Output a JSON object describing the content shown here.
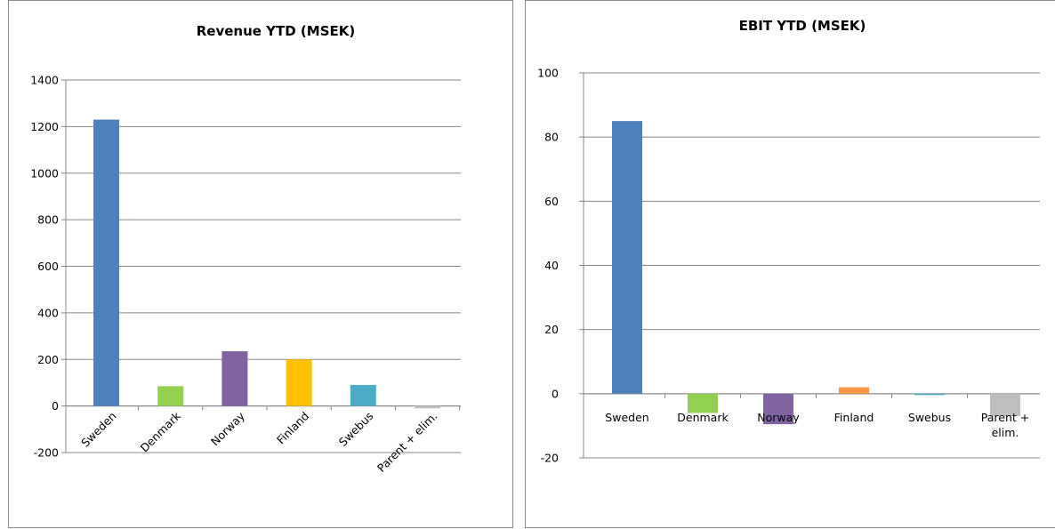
{
  "chart_data": [
    {
      "type": "bar",
      "title": "Revenue YTD (MSEK)",
      "categories": [
        "Sweden",
        "Denmark",
        "Norway",
        "Finland",
        "Swebus",
        "Parent + elim."
      ],
      "values": [
        1230,
        85,
        235,
        200,
        90,
        -10
      ],
      "colors": [
        "#4f81bd",
        "#92d050",
        "#8064a2",
        "#ffc000",
        "#4bacc6",
        "#bfbfbf"
      ],
      "ylim": [
        -200,
        1400
      ],
      "yticks": [
        -200,
        0,
        200,
        400,
        600,
        800,
        1000,
        1200,
        1400
      ],
      "label_style": "rotated",
      "grid": true,
      "legend": "none"
    },
    {
      "type": "bar",
      "title": "EBIT YTD (MSEK)",
      "categories": [
        "Sweden",
        "Denmark",
        "Norway",
        "Finland",
        "Swebus",
        "Parent + elim."
      ],
      "category_lines": [
        [
          "Sweden"
        ],
        [
          "Denmark"
        ],
        [
          "Norway"
        ],
        [
          "Finland"
        ],
        [
          "Swebus"
        ],
        [
          "Parent +",
          "elim."
        ]
      ],
      "values": [
        85,
        -6,
        -9.5,
        2,
        0,
        -7
      ],
      "colors": [
        "#4f81bd",
        "#92d050",
        "#8064a2",
        "#f79646",
        "#4bacc6",
        "#bfbfbf"
      ],
      "ylim": [
        -20,
        100
      ],
      "yticks": [
        -20,
        0,
        20,
        40,
        60,
        80,
        100
      ],
      "label_style": "horizontal",
      "grid": true,
      "legend": "none"
    }
  ]
}
